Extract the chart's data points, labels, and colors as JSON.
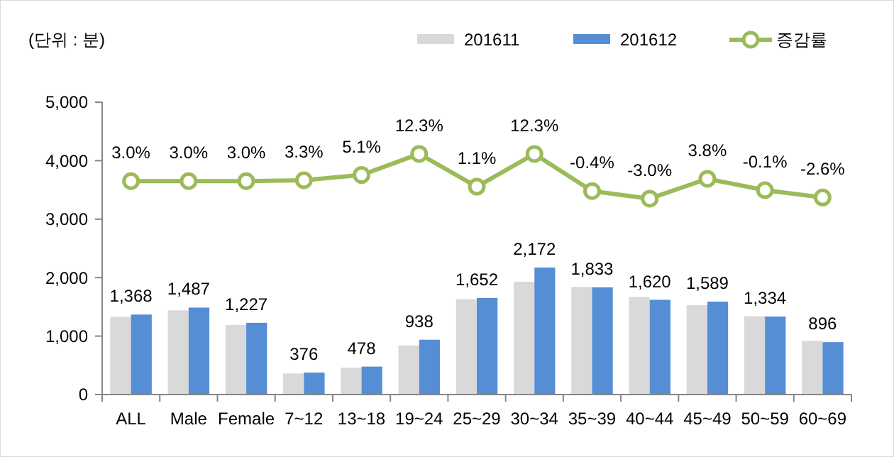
{
  "chart_data": {
    "type": "bar",
    "ylabel": "(단위 : 분)",
    "categories": [
      "ALL",
      "Male",
      "Female",
      "7~12",
      "13~18",
      "19~24",
      "25~29",
      "30~34",
      "35~39",
      "40~44",
      "45~49",
      "50~59",
      "60~69"
    ],
    "series": [
      {
        "name": "201611",
        "color": "#d9d9d9",
        "values": [
          1330,
          1440,
          1190,
          360,
          460,
          840,
          1630,
          1930,
          1840,
          1670,
          1530,
          1340,
          920
        ]
      },
      {
        "name": "201612",
        "color": "#558ed5",
        "values": [
          1368,
          1487,
          1227,
          376,
          478,
          938,
          1652,
          2172,
          1833,
          1620,
          1589,
          1334,
          896
        ],
        "value_labels": [
          "1,368",
          "1,487",
          "1,227",
          "376",
          "478",
          "938",
          "1,652",
          "2,172",
          "1,833",
          "1,620",
          "1,589",
          "1,334",
          "896"
        ]
      },
      {
        "name": "증감률",
        "type": "line",
        "axis": "y2",
        "color": "#9bbb59",
        "values": [
          3.0,
          3.0,
          3.0,
          3.3,
          5.1,
          12.3,
          1.1,
          12.3,
          -0.4,
          -3.0,
          3.8,
          -0.1,
          -2.6
        ],
        "value_labels": [
          "3.0%",
          "3.0%",
          "3.0%",
          "3.3%",
          "5.1%",
          "12.3%",
          "1.1%",
          "12.3%",
          "-0.4%",
          "-3.0%",
          "3.8%",
          "-0.1%",
          "-2.6%"
        ]
      }
    ],
    "ylim": [
      0,
      5000
    ],
    "yticks": [
      {
        "value": 0,
        "label": "0"
      },
      {
        "value": 1000,
        "label": "1,000"
      },
      {
        "value": 2000,
        "label": "2,000"
      },
      {
        "value": 3000,
        "label": "3,000"
      },
      {
        "value": 4000,
        "label": "4,000"
      },
      {
        "value": 5000,
        "label": "5,000"
      }
    ],
    "y2lim": [
      -70,
      30
    ],
    "legend": "top right",
    "marker": "circle",
    "grid": false
  }
}
